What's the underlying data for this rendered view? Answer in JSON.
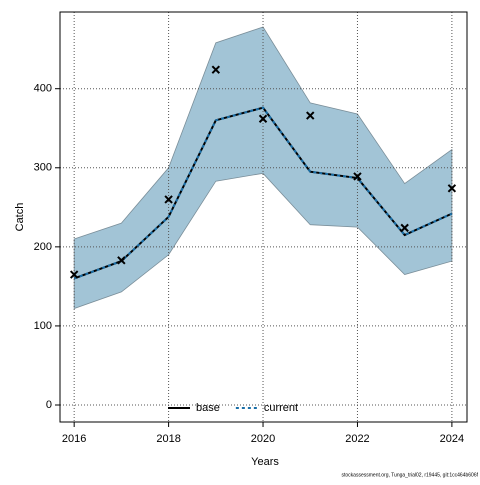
{
  "chart_data": {
    "type": "line",
    "x_label": "Years",
    "y_label": "Catch",
    "footnote": "stockassessment.org, Tunga_trial02, r19445, git:1cc464b606f",
    "x": [
      2016,
      2017,
      2018,
      2019,
      2020,
      2021,
      2022,
      2023,
      2024
    ],
    "band": {
      "color": "#a2c4d6",
      "upper": [
        210,
        230,
        300,
        458,
        478,
        382,
        368,
        280,
        323
      ],
      "lower": [
        122,
        143,
        190,
        283,
        293,
        228,
        225,
        165,
        182
      ]
    },
    "series": [
      {
        "name": "base",
        "color": "#000000",
        "values": [
          160,
          182,
          238,
          360,
          376,
          295,
          287,
          215,
          242
        ]
      },
      {
        "name": "current",
        "color": "#1a6fa8",
        "values": [
          160,
          182,
          238,
          360,
          376,
          295,
          287,
          215,
          242
        ]
      }
    ],
    "observed": {
      "color": "#000000",
      "values": [
        165,
        183,
        260,
        424,
        362,
        366,
        289,
        224,
        274
      ]
    },
    "xlim": [
      2015.7,
      2024.32
    ],
    "ylim": [
      -21.5,
      497
    ],
    "xticks": [
      2016,
      2018,
      2020,
      2022,
      2024
    ],
    "yticks": [
      0,
      100,
      200,
      300,
      400
    ],
    "grid": true,
    "legend": "bottom"
  }
}
